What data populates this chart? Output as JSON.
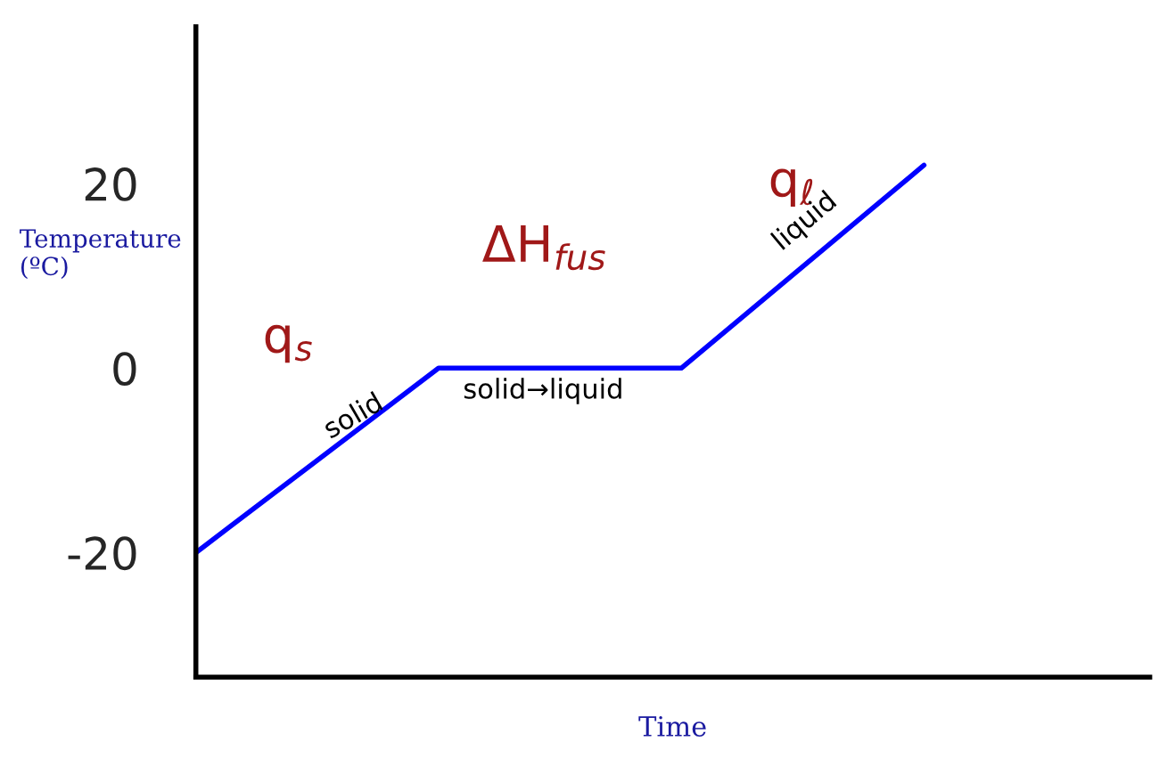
{
  "chart_data": {
    "type": "line",
    "xlabel": "Time",
    "ylabel": "Temperature\n(ºC)",
    "categories": [
      null,
      null,
      null,
      null
    ],
    "series": [
      {
        "color": "#0000ff",
        "values": [
          -20,
          0,
          0,
          22
        ]
      }
    ],
    "ylim": [
      -33.5,
      37
    ],
    "yticks": [
      {
        "value": -20,
        "label": "-20"
      },
      0,
      20
    ],
    "grid": false,
    "legend": false,
    "marker": "none",
    "line_style": "solid",
    "annotations": [
      "q$_{s}$",
      "solid",
      "ΔH$_{fus}$",
      "solid→liquid",
      "q$_{ℓ}$",
      "liquid"
    ]
  }
}
